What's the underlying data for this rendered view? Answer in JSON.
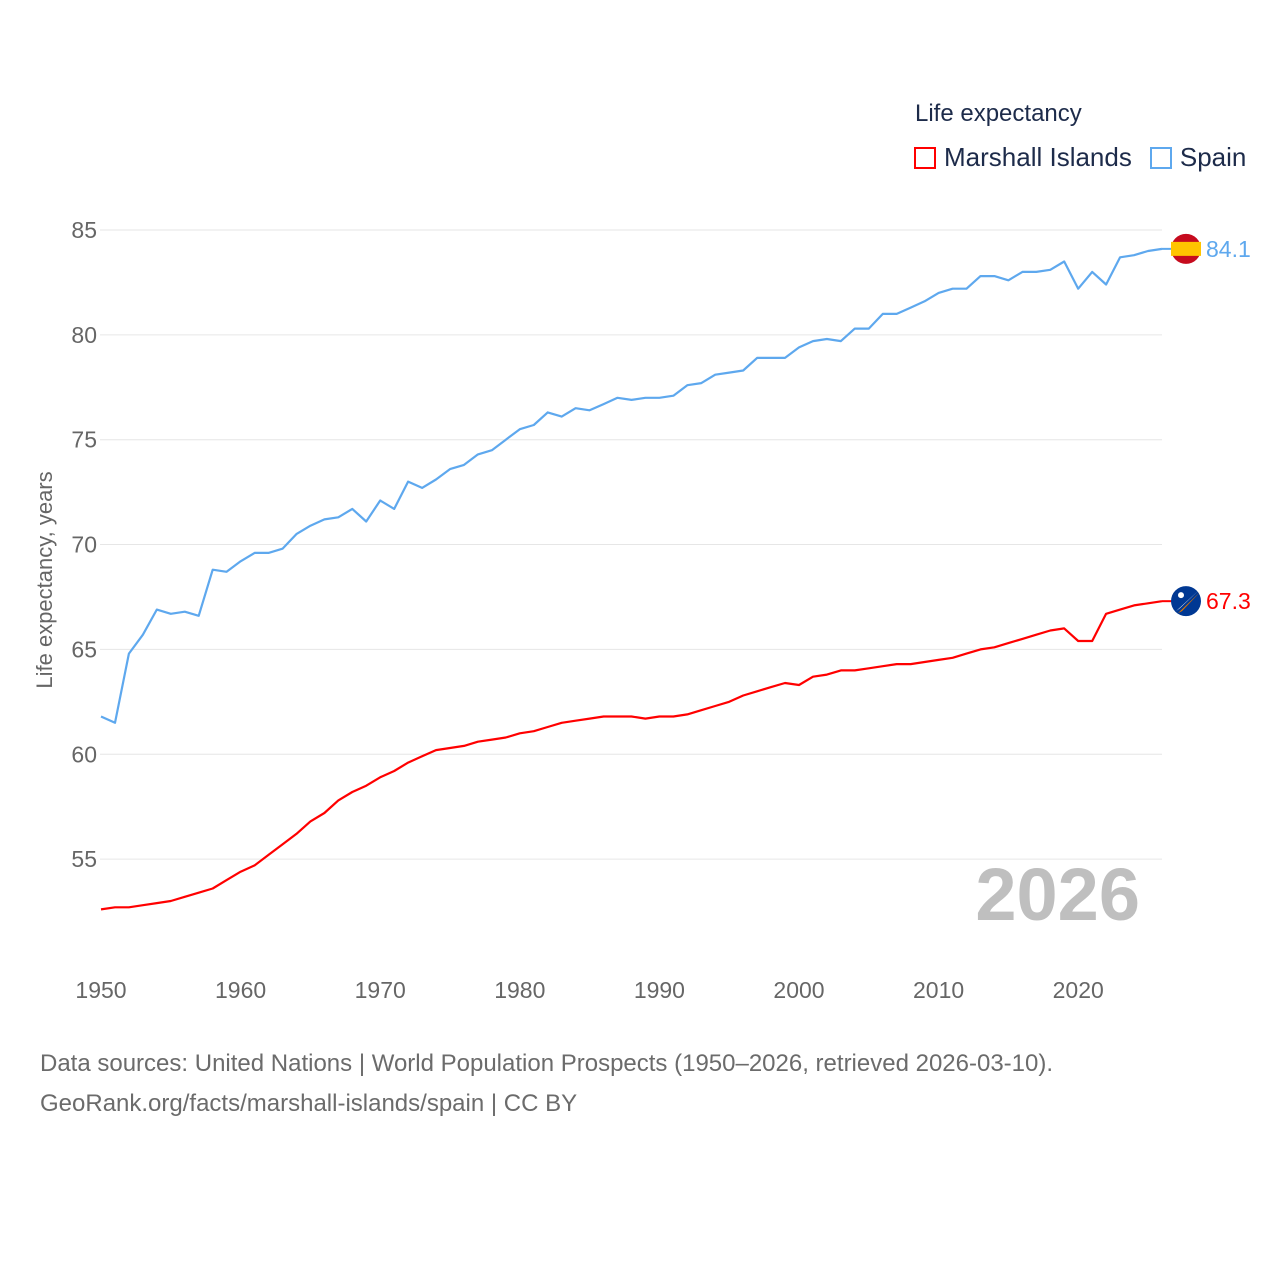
{
  "chart_data": {
    "type": "line",
    "title": "Life expectancy",
    "ylabel": "Life expectancy, years",
    "xlabel": "",
    "xlim": [
      1950,
      2026
    ],
    "ylim": [
      51.5,
      85
    ],
    "yticks": [
      "55",
      "60",
      "65",
      "70",
      "75",
      "80",
      "85"
    ],
    "xticks": [
      "1950",
      "1960",
      "1970",
      "1980",
      "1990",
      "2000",
      "2010",
      "2020"
    ],
    "grid": true,
    "legend_position": "top-right",
    "year_watermark": "2026",
    "x": [
      1950,
      1951,
      1952,
      1953,
      1954,
      1955,
      1956,
      1957,
      1958,
      1959,
      1960,
      1961,
      1962,
      1963,
      1964,
      1965,
      1966,
      1967,
      1968,
      1969,
      1970,
      1971,
      1972,
      1973,
      1974,
      1975,
      1976,
      1977,
      1978,
      1979,
      1980,
      1981,
      1982,
      1983,
      1984,
      1985,
      1986,
      1987,
      1988,
      1989,
      1990,
      1991,
      1992,
      1993,
      1994,
      1995,
      1996,
      1997,
      1998,
      1999,
      2000,
      2001,
      2002,
      2003,
      2004,
      2005,
      2006,
      2007,
      2008,
      2009,
      2010,
      2011,
      2012,
      2013,
      2014,
      2015,
      2016,
      2017,
      2018,
      2019,
      2020,
      2021,
      2022,
      2023,
      2024,
      2025,
      2026
    ],
    "series": [
      {
        "name": "Marshall Islands",
        "color": "#ff0000",
        "end_label": "67.3",
        "flag": "marshall-islands-flag",
        "values": [
          52.6,
          52.7,
          52.7,
          52.8,
          52.9,
          53.0,
          53.2,
          53.4,
          53.6,
          54.0,
          54.4,
          54.7,
          55.2,
          55.7,
          56.2,
          56.8,
          57.2,
          57.8,
          58.2,
          58.5,
          58.9,
          59.2,
          59.6,
          59.9,
          60.2,
          60.3,
          60.4,
          60.6,
          60.7,
          60.8,
          61.0,
          61.1,
          61.3,
          61.5,
          61.6,
          61.7,
          61.8,
          61.8,
          61.8,
          61.7,
          61.8,
          61.8,
          61.9,
          62.1,
          62.3,
          62.5,
          62.8,
          63.0,
          63.2,
          63.4,
          63.3,
          63.7,
          63.8,
          64.0,
          64.0,
          64.1,
          64.2,
          64.3,
          64.3,
          64.4,
          64.5,
          64.6,
          64.8,
          65.0,
          65.1,
          65.3,
          65.5,
          65.7,
          65.9,
          66.0,
          65.4,
          65.4,
          66.7,
          66.9,
          67.1,
          67.2,
          67.3
        ]
      },
      {
        "name": "Spain",
        "color": "#5ea8ee",
        "end_label": "84.1",
        "flag": "spain-flag",
        "values": [
          61.8,
          61.5,
          64.8,
          65.7,
          66.9,
          66.7,
          66.8,
          66.6,
          68.8,
          68.7,
          69.2,
          69.6,
          69.6,
          69.8,
          70.5,
          70.9,
          71.2,
          71.3,
          71.7,
          71.1,
          72.1,
          71.7,
          73.0,
          72.7,
          73.1,
          73.6,
          73.8,
          74.3,
          74.5,
          75.0,
          75.5,
          75.7,
          76.3,
          76.1,
          76.5,
          76.4,
          76.7,
          77.0,
          76.9,
          77.0,
          77.0,
          77.1,
          77.6,
          77.7,
          78.1,
          78.2,
          78.3,
          78.9,
          78.9,
          78.9,
          79.4,
          79.7,
          79.8,
          79.7,
          80.3,
          80.3,
          81.0,
          81.0,
          81.3,
          81.6,
          82.0,
          82.2,
          82.2,
          82.8,
          82.8,
          82.6,
          83.0,
          83.0,
          83.1,
          83.5,
          82.2,
          83.0,
          82.4,
          83.7,
          83.8,
          84.0,
          84.1
        ]
      }
    ]
  },
  "source": {
    "line1": "Data sources: United Nations | World Population Prospects (1950–2026, retrieved 2026-03-10).",
    "line2": "GeoRank.org/facts/marshall-islands/spain | CC BY"
  }
}
